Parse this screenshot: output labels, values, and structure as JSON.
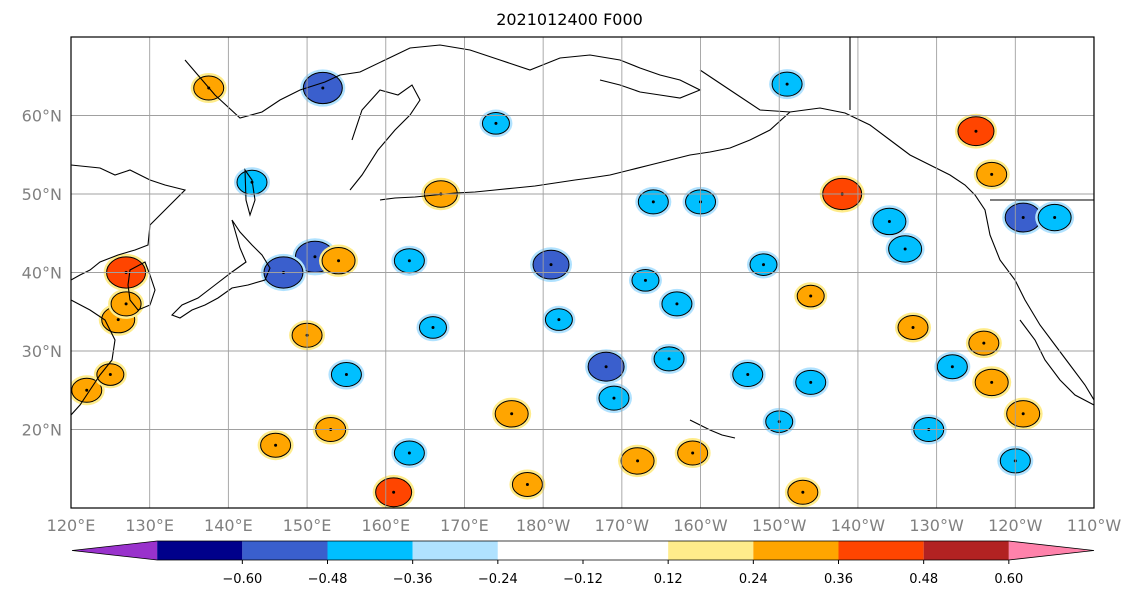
{
  "title": "2021012400 F000",
  "map": {
    "lon_range": [
      120,
      250
    ],
    "lat_range": [
      10,
      70
    ],
    "lon_ticks": [
      "120°E",
      "130°E",
      "140°E",
      "150°E",
      "160°E",
      "170°E",
      "180°W",
      "170°W",
      "160°W",
      "150°W",
      "140°W",
      "130°W",
      "120°W",
      "110°W"
    ],
    "lat_ticks": [
      {
        "lat": 20,
        "label": "20°N"
      },
      {
        "lat": 30,
        "label": "30°N"
      },
      {
        "lat": 40,
        "label": "40°N"
      },
      {
        "lat": 50,
        "label": "50°N"
      },
      {
        "lat": 60,
        "label": "60°N"
      }
    ],
    "gridlines": true,
    "field_blobs": [
      {
        "lon": 127,
        "lat": 40,
        "v": 0.45
      },
      {
        "lon": 126,
        "lat": 34,
        "v": 0.35
      },
      {
        "lon": 137.5,
        "lat": 63.5,
        "v": 0.3
      },
      {
        "lon": 152,
        "lat": 63.5,
        "v": -0.45
      },
      {
        "lon": 143,
        "lat": 51.5,
        "v": -0.3
      },
      {
        "lon": 151,
        "lat": 42,
        "v": -0.45
      },
      {
        "lon": 147,
        "lat": 40,
        "v": -0.45
      },
      {
        "lon": 154,
        "lat": 41.5,
        "v": 0.35
      },
      {
        "lon": 155,
        "lat": 27,
        "v": -0.3
      },
      {
        "lon": 150,
        "lat": 32,
        "v": 0.3
      },
      {
        "lon": 163,
        "lat": 41.5,
        "v": -0.3
      },
      {
        "lon": 167,
        "lat": 50,
        "v": 0.35
      },
      {
        "lon": 181,
        "lat": 41,
        "v": -0.4
      },
      {
        "lon": 188,
        "lat": 28,
        "v": -0.4
      },
      {
        "lon": 189,
        "lat": 24,
        "v": -0.3
      },
      {
        "lon": 194,
        "lat": 49,
        "v": -0.3
      },
      {
        "lon": 200,
        "lat": 49,
        "v": -0.3
      },
      {
        "lon": 218,
        "lat": 50,
        "v": 0.45
      },
      {
        "lon": 224,
        "lat": 46.5,
        "v": -0.35
      },
      {
        "lon": 226,
        "lat": 43,
        "v": -0.35
      },
      {
        "lon": 235,
        "lat": 58,
        "v": 0.4
      },
      {
        "lon": 237,
        "lat": 52.5,
        "v": 0.3
      },
      {
        "lon": 241,
        "lat": 47,
        "v": -0.4
      },
      {
        "lon": 236,
        "lat": 31,
        "v": 0.3
      },
      {
        "lon": 237,
        "lat": 26,
        "v": 0.35
      },
      {
        "lon": 241,
        "lat": 22,
        "v": 0.35
      },
      {
        "lon": 232,
        "lat": 28,
        "v": -0.3
      },
      {
        "lon": 227,
        "lat": 33,
        "v": 0.3
      },
      {
        "lon": 214,
        "lat": 37,
        "v": 0.25
      },
      {
        "lon": 211,
        "lat": 64,
        "v": -0.3
      },
      {
        "lon": 163,
        "lat": 17,
        "v": -0.3
      },
      {
        "lon": 161,
        "lat": 12,
        "v": 0.4
      },
      {
        "lon": 176,
        "lat": 22,
        "v": 0.35
      },
      {
        "lon": 178,
        "lat": 13,
        "v": 0.3
      },
      {
        "lon": 197,
        "lat": 36,
        "v": -0.3
      },
      {
        "lon": 196,
        "lat": 29,
        "v": -0.3
      },
      {
        "lon": 206,
        "lat": 27,
        "v": -0.3
      },
      {
        "lon": 214,
        "lat": 26,
        "v": -0.3
      },
      {
        "lon": 210,
        "lat": 21,
        "v": -0.25
      },
      {
        "lon": 193,
        "lat": 39,
        "v": -0.25
      },
      {
        "lon": 208,
        "lat": 41,
        "v": -0.25
      },
      {
        "lon": 146,
        "lat": 18,
        "v": 0.3
      },
      {
        "lon": 122,
        "lat": 25,
        "v": 0.3
      },
      {
        "lon": 125,
        "lat": 27,
        "v": 0.25
      },
      {
        "lon": 182,
        "lat": 34,
        "v": -0.25
      },
      {
        "lon": 174,
        "lat": 59,
        "v": -0.25
      },
      {
        "lon": 166,
        "lat": 33,
        "v": -0.25
      },
      {
        "lon": 127,
        "lat": 36,
        "v": 0.3
      },
      {
        "lon": 153,
        "lat": 20,
        "v": 0.3
      },
      {
        "lon": 229,
        "lat": 20,
        "v": -0.3
      },
      {
        "lon": 213,
        "lat": 12,
        "v": 0.3
      },
      {
        "lon": 199,
        "lat": 17,
        "v": 0.3
      },
      {
        "lon": 192,
        "lat": 16,
        "v": 0.35
      },
      {
        "lon": 240,
        "lat": 16,
        "v": -0.3
      },
      {
        "lon": 245,
        "lat": 47,
        "v": -0.35
      }
    ]
  },
  "colorbar": {
    "colors": [
      "#9932cc",
      "#00008b",
      "#3a5fcd",
      "#00bfff",
      "#b0e2ff",
      "#ffffff",
      "#ffffff",
      "#ffec8b",
      "#ffa500",
      "#ff4500",
      "#b22222",
      "#ff82ab"
    ],
    "labels": [
      "−0.60",
      "−0.48",
      "−0.36",
      "−0.24",
      "−0.12",
      "0.12",
      "0.24",
      "0.36",
      "0.48",
      "0.60"
    ],
    "extend": "both"
  },
  "land_color": "#ffffff",
  "coast_color": "#000000",
  "grid_color": "#a0a0a0"
}
